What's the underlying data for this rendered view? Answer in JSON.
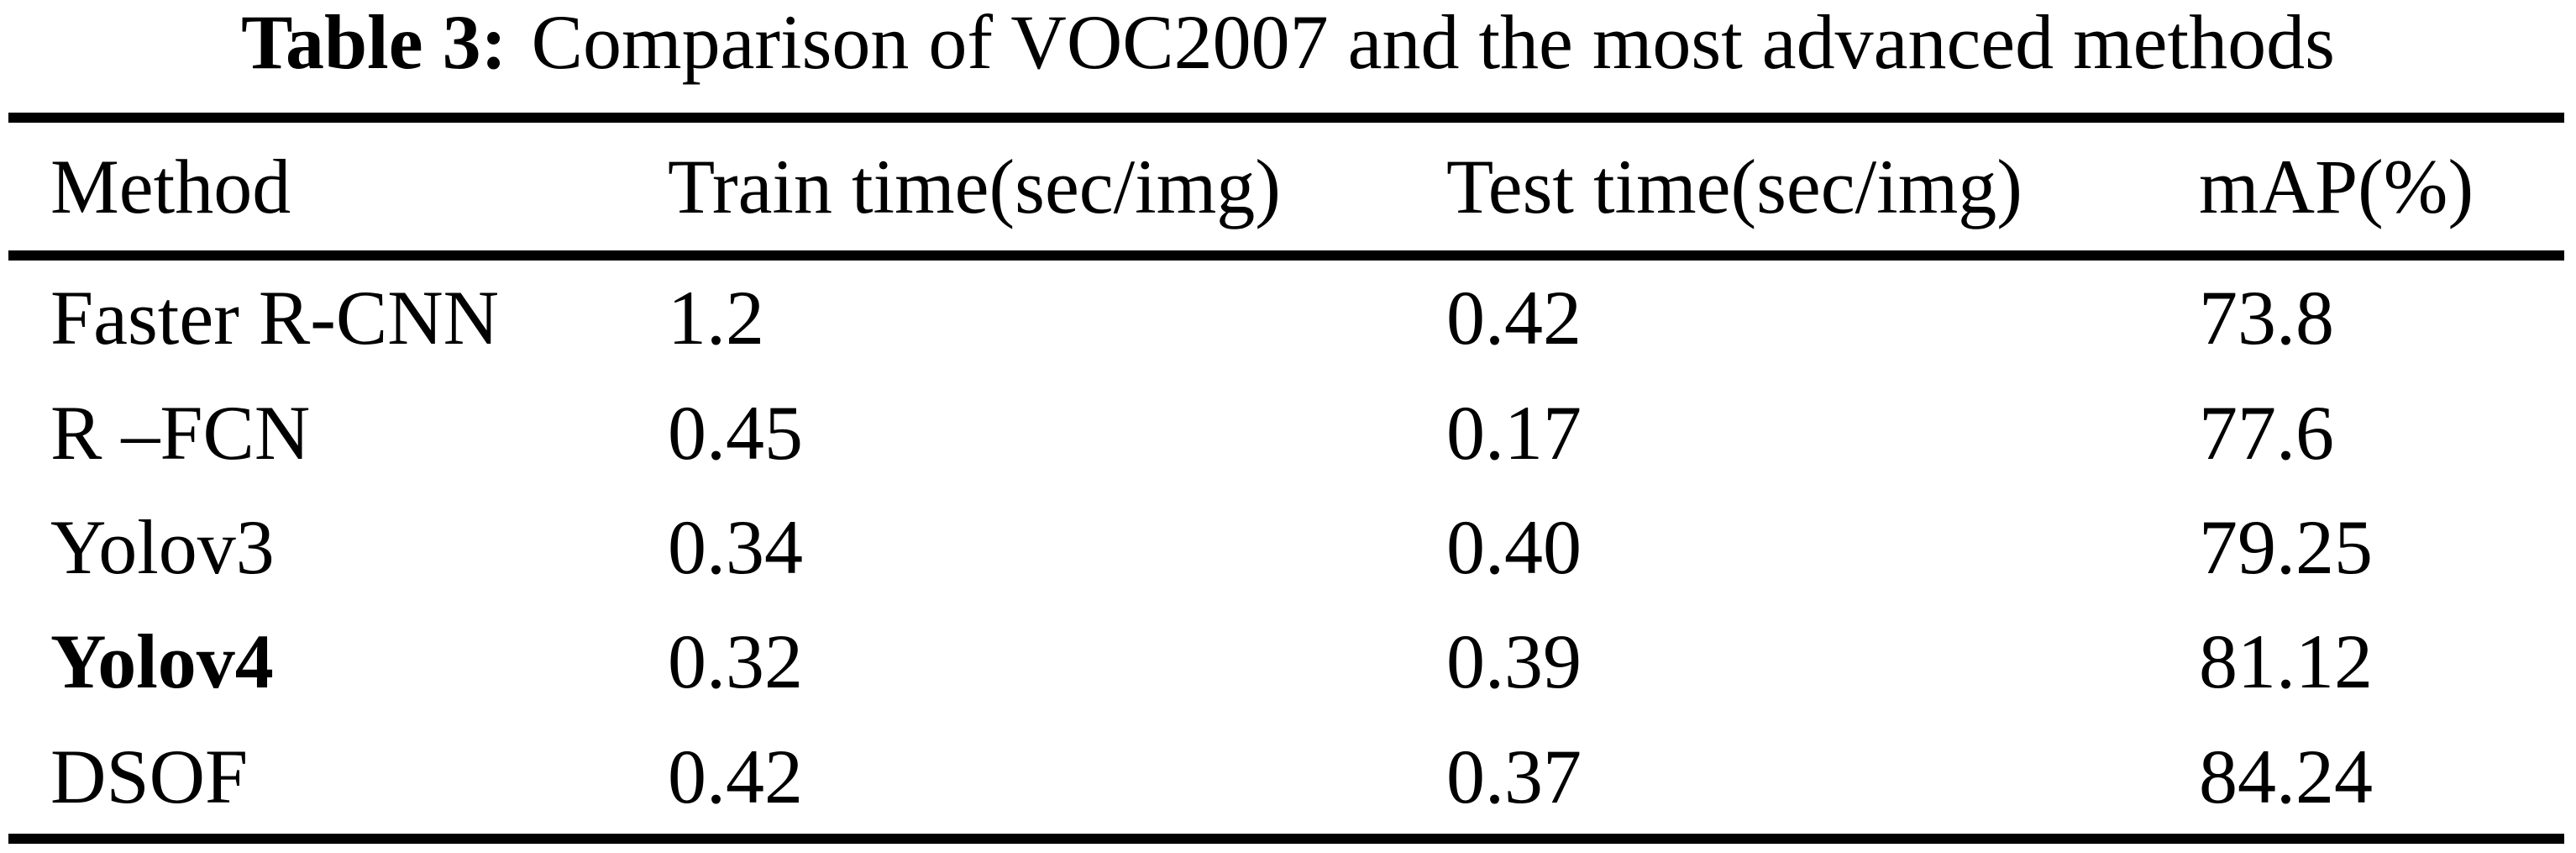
{
  "title": {
    "label": "Table 3:",
    "text": "Comparison of VOC2007 and the most advanced methods"
  },
  "table": {
    "headers": {
      "method": "Method",
      "train": "Train time(sec/img)",
      "test": "Test time(sec/img)",
      "map": "mAP(%)"
    },
    "rows": [
      {
        "method": "Faster R-CNN",
        "train": "1.2",
        "test": "0.42",
        "map": "73.8"
      },
      {
        "method": "R –FCN",
        "train": "0.45",
        "test": "0.17",
        "map": "77.6"
      },
      {
        "method": "Yolov3",
        "train": "0.34",
        "test": "0.40",
        "map": "79.25"
      },
      {
        "method": "Yolov4",
        "train": "0.32",
        "test": "0.39",
        "map": "81.12"
      },
      {
        "method": "DSOF",
        "train": "0.42",
        "test": "0.37",
        "map": "84.24"
      }
    ]
  },
  "colors": {
    "background": "#ffffff",
    "text": "#000000",
    "rule": "#000000"
  }
}
